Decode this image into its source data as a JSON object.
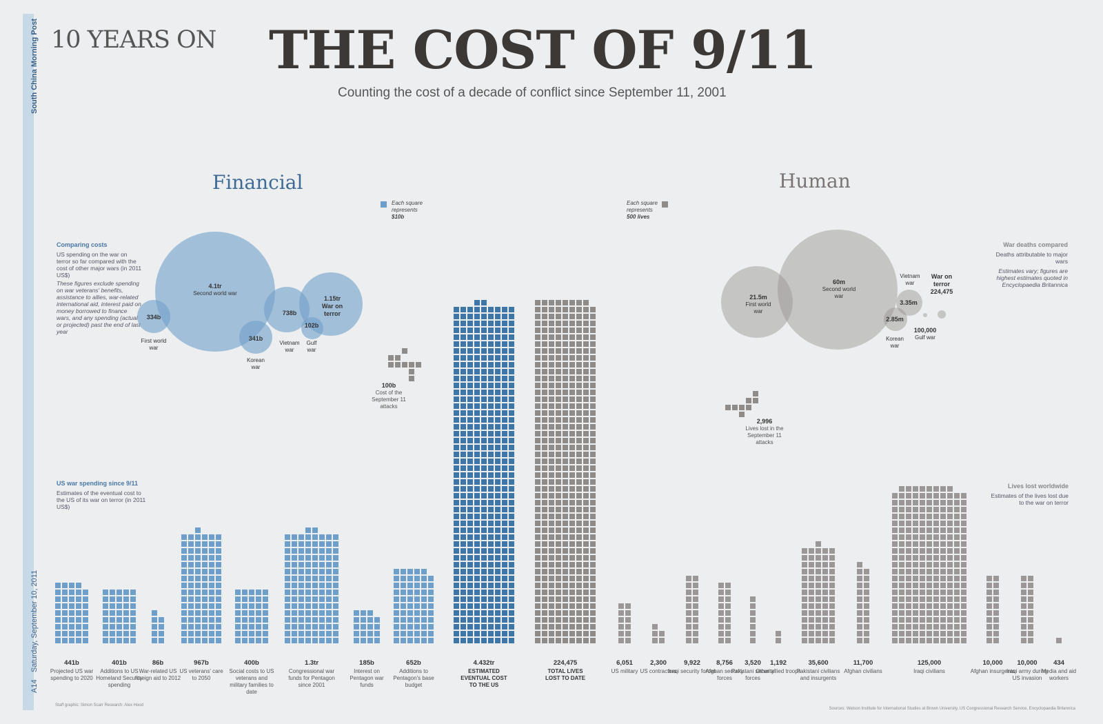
{
  "masthead": {
    "paper": "South China Morning Post",
    "dateline": "Saturday, September 10, 2011",
    "page": "A14"
  },
  "kicker": "10 YEARS ON",
  "title": "THE COST OF 9/11",
  "subtitle": "Counting the cost of a decade of conflict since September 11, 2001",
  "sections": {
    "financial": "Financial",
    "human": "Human"
  },
  "financial": {
    "comparing": {
      "head": "Comparing costs",
      "desc": "US spending on the war on terror so far compared with the cost of other major wars (in 2011 US$)",
      "note": "These figures exclude spending on war veterans' benefits, assistance to allies, war-related international aid, interest paid on money borrowed to finance wars, and any spending (actual or projected) past the end of last year",
      "bubbles": [
        {
          "value": "334b",
          "label": "First world war"
        },
        {
          "value": "4.1tr",
          "label": "Second world war"
        },
        {
          "value": "341b",
          "label": "Korean war"
        },
        {
          "value": "738b",
          "label": "Vietnam war"
        },
        {
          "value": "102b",
          "label": "Gulf war"
        },
        {
          "value": "1.15tr",
          "label": "War on terror"
        }
      ]
    },
    "legend": {
      "l1": "Each square",
      "l2": "represents",
      "l3": "$10b"
    },
    "attack": {
      "value": "100b",
      "label": "Cost of the September 11 attacks"
    },
    "spending": {
      "head": "US war spending since 9/11",
      "desc": "Estimates of the eventual cost to the US of its war on terror (in 2011 US$)"
    },
    "total": {
      "value": "4.432tr",
      "label": "ESTIMATED EVENTUAL COST TO THE US"
    }
  },
  "human": {
    "compared": {
      "head": "War deaths compared",
      "desc": "Deaths attributable to major wars",
      "note": "Estimates vary; figures are highest estimates quoted in Encyclopaedia Britannica",
      "bubbles": [
        {
          "value": "21.5m",
          "label": "First world war"
        },
        {
          "value": "60m",
          "label": "Second world war"
        },
        {
          "value": "",
          "label": "Vietnam war"
        },
        {
          "value": "3.35m",
          "label": ""
        },
        {
          "value": "2.85m",
          "label": "Korean war"
        },
        {
          "value": "100,000",
          "label": "Gulf war"
        },
        {
          "value": "224,475",
          "label": "War on terror"
        }
      ]
    },
    "legend": {
      "l1": "Each square",
      "l2": "represents",
      "l3": "500 lives"
    },
    "attack": {
      "value": "2,996",
      "label": "Lives lost in the September 11 attacks"
    },
    "worldwide": {
      "head": "Lives lost worldwide",
      "desc": "Estimates of the lives lost due to the war on terror"
    },
    "total": {
      "value": "224,475",
      "label": "TOTAL LIVES LOST TO DATE"
    }
  },
  "sources": "Sources: Watson Institute for International Studies at Brown University, US Congressional Research Service, Encyclopaedia Britannica",
  "credit": "Staff graphic: Simon Scarr   Research: Alex Hood",
  "colors": {
    "financial": "#6e9fcb",
    "financial_total": "#3f76a8",
    "human": "#8e8b89"
  },
  "chart_data": [
    {
      "type": "bar",
      "title": "US war spending since 9/11",
      "categories": [
        "Projected US war spending to 2020",
        "Additions to US Homeland Security spending",
        "War-related US foreign aid to 2012",
        "US veterans' care to 2050",
        "Social costs to US veterans and military families to date",
        "Congressional war funds for Pentagon since 2001",
        "Interest on Pentagon war funds",
        "Additions to Pentagon's base budget",
        "ESTIMATED EVENTUAL COST TO THE US"
      ],
      "display_values": [
        "441b",
        "401b",
        "86b",
        "967b",
        "400b",
        "1.3tr",
        "185b",
        "652b",
        "4.432tr"
      ],
      "values": [
        441,
        401,
        86,
        967,
        400,
        1300,
        185,
        652,
        4432
      ],
      "unit": "US$ billions (each square = $10b)"
    },
    {
      "type": "bar",
      "title": "Lives lost worldwide",
      "categories": [
        "TOTAL LIVES LOST TO DATE",
        "US military",
        "US contractors",
        "Iraqi security forces",
        "Afghan security forces",
        "Pakistani security forces",
        "Other allied troops",
        "Pakistani civilians and insurgents",
        "Afghan civilians",
        "Iraqi civilians",
        "Afghan insurgents",
        "Iraqi army during US invasion",
        "Media and aid workers"
      ],
      "display_values": [
        "224,475",
        "6,051",
        "2,300",
        "9,922",
        "8,756",
        "3,520",
        "1,192",
        "35,600",
        "11,700",
        "125,000",
        "10,000",
        "10,000",
        "434"
      ],
      "values": [
        224475,
        6051,
        2300,
        9922,
        8756,
        3520,
        1192,
        35600,
        11700,
        125000,
        10000,
        10000,
        434
      ],
      "unit": "lives (each square = 500 lives)"
    }
  ]
}
